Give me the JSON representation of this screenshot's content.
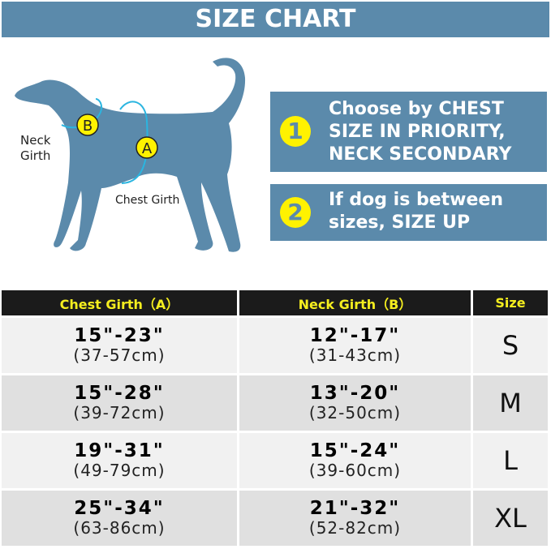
{
  "header": {
    "title": "SIZE CHART"
  },
  "diagram": {
    "neck_label_1": "Neck",
    "neck_label_2": "Girth",
    "chest_label": "Chest Girth",
    "marker_a": "A",
    "marker_b": "B"
  },
  "tips": [
    {
      "number": "1",
      "lines": [
        "Choose by CHEST",
        "SIZE IN PRIORITY,",
        "NECK SECONDARY"
      ]
    },
    {
      "number": "2",
      "lines": [
        "If dog is between",
        "sizes, SIZE UP"
      ]
    }
  ],
  "table": {
    "headers": [
      "Chest Girth（A）",
      "Neck Girth（B）",
      "Size"
    ],
    "rows": [
      {
        "chest_in": "15\"-23\"",
        "chest_cm": "(37-57cm)",
        "neck_in": "12\"-17\"",
        "neck_cm": "(31-43cm)",
        "size": "S"
      },
      {
        "chest_in": "15\"-28\"",
        "chest_cm": "(39-72cm)",
        "neck_in": "13\"-20\"",
        "neck_cm": "(32-50cm)",
        "size": "M"
      },
      {
        "chest_in": "19\"-31\"",
        "chest_cm": "(49-79cm)",
        "neck_in": "15\"-24\"",
        "neck_cm": "(39-60cm)",
        "size": "L"
      },
      {
        "chest_in": "25\"-34\"",
        "chest_cm": "(63-86cm)",
        "neck_in": "21\"-32\"",
        "neck_cm": "(52-82cm)",
        "size": "XL"
      }
    ]
  },
  "colors": {
    "brand_blue": "#5b8aab",
    "marker_yellow": "#fff200",
    "header_text": "#f5ee1f"
  }
}
